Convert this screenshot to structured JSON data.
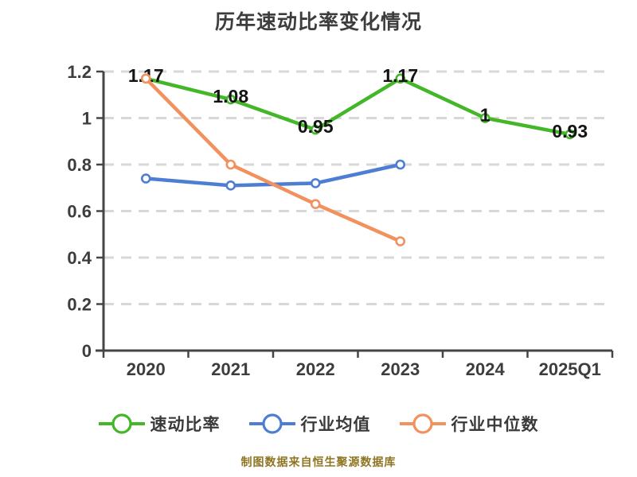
{
  "title": "历年速动比率变化情况",
  "footer": {
    "text": "制图数据来自恒生聚源数据库",
    "color": "#8e7522"
  },
  "chart_data": {
    "type": "line",
    "categories": [
      "2020",
      "2021",
      "2022",
      "2023",
      "2024",
      "2025Q1"
    ],
    "series": [
      {
        "name": "速动比率",
        "color": "#43b727",
        "values": [
          1.17,
          1.08,
          0.95,
          1.17,
          1,
          0.93
        ],
        "point_labels": [
          "1.17",
          "1.08",
          "0.95",
          "1.17",
          "1",
          "0.93"
        ]
      },
      {
        "name": "行业均值",
        "color": "#4e7dd4",
        "values": [
          0.74,
          0.71,
          0.72,
          0.8,
          null,
          null
        ],
        "point_labels": null
      },
      {
        "name": "行业中位数",
        "color": "#f2915e",
        "values": [
          1.17,
          0.8,
          0.63,
          0.47,
          null,
          null
        ],
        "point_labels": null
      }
    ],
    "ylim": [
      0,
      1.2
    ],
    "yticks": [
      0,
      0.2,
      0.4,
      0.6,
      0.8,
      1,
      1.2
    ],
    "ytick_labels": [
      "0",
      "0.2",
      "0.4",
      "0.6",
      "0.8",
      "1",
      "1.2"
    ],
    "xlabel": "",
    "ylabel": "",
    "grid": "dashed-horizontal",
    "legend_position": "bottom",
    "marker": "circle-white-fill"
  },
  "colors": {
    "grid": "#d8d8d8",
    "axis": "#454545",
    "tick_text": "#3d3d3d",
    "data_label": "#141414",
    "background": "#ffffff"
  }
}
